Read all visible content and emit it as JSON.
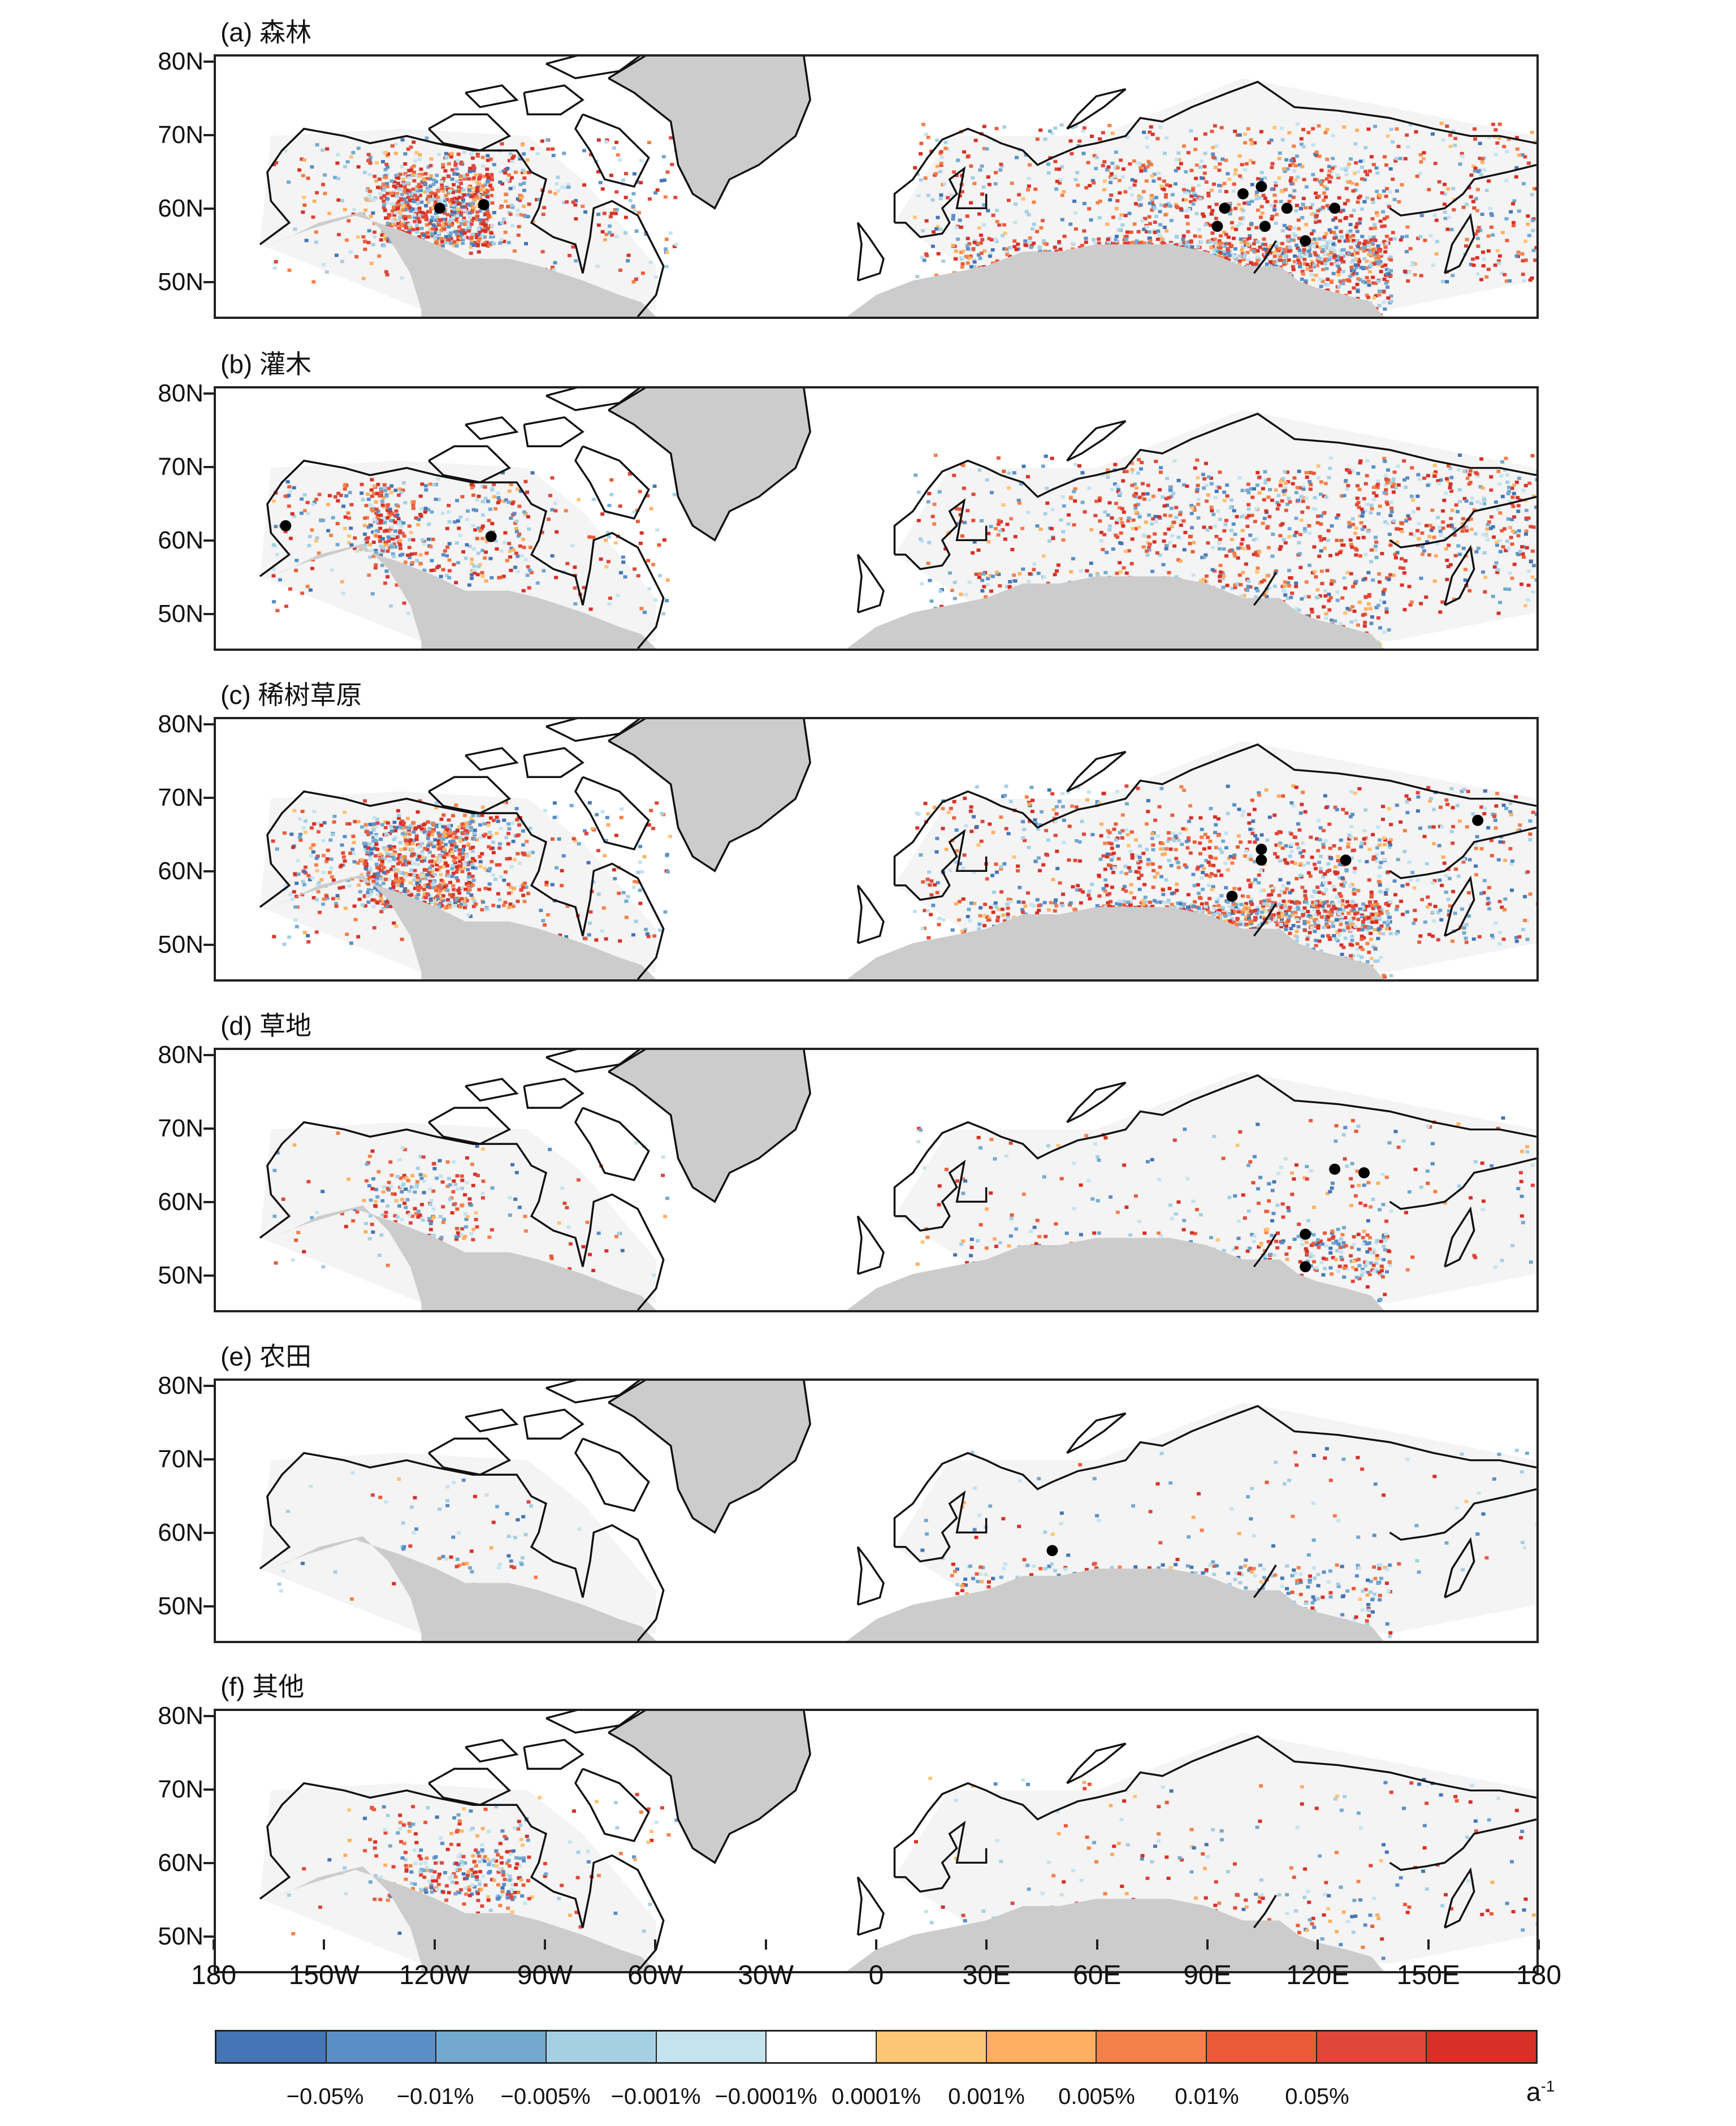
{
  "panels": [
    {
      "title": "(a) 森林",
      "dots_east": [
        [
          95,
          60
        ],
        [
          100,
          62
        ],
        [
          105,
          63
        ],
        [
          93,
          57.5
        ],
        [
          106,
          57.5
        ],
        [
          112,
          60
        ],
        [
          117,
          55.5
        ],
        [
          125,
          60
        ]
      ],
      "dots_west": [
        [
          -119,
          60
        ],
        [
          -107,
          60.5
        ]
      ]
    },
    {
      "title": "(b) 灌木",
      "dots_east": [],
      "dots_west": [
        [
          -161,
          62
        ],
        [
          -105,
          60.5
        ]
      ]
    },
    {
      "title": "(c) 稀树草原",
      "dots_east": [
        [
          105,
          63
        ],
        [
          105,
          61.5
        ],
        [
          97,
          56.5
        ],
        [
          128,
          61.5
        ],
        [
          164,
          67
        ]
      ],
      "dots_west": []
    },
    {
      "title": "(d) 草地",
      "dots_east": [
        [
          125,
          64.5
        ],
        [
          133,
          64
        ],
        [
          117,
          55.5
        ],
        [
          117,
          51
        ]
      ],
      "dots_west": []
    },
    {
      "title": "(e) 农田",
      "dots_east": [
        [
          48,
          57.5
        ]
      ],
      "dots_west": []
    },
    {
      "title": "(f) 其他",
      "dots_east": [],
      "dots_west": []
    }
  ],
  "lat_labels": [
    "80N",
    "70N",
    "60N",
    "50N"
  ],
  "lon_labels": [
    "180",
    "150W",
    "120W",
    "90W",
    "60W",
    "30W",
    "0",
    "30E",
    "60E",
    "90E",
    "120E",
    "150E",
    "180"
  ],
  "colorbar": {
    "colors": [
      "#4575b4",
      "#5a8ec6",
      "#74a9cf",
      "#a6cfe3",
      "#c5e3ee",
      "#ffffff",
      "#fdc576",
      "#fdb062",
      "#f4804a",
      "#e95a3a",
      "#e0463a",
      "#d73027"
    ],
    "labels": [
      "−0.05%",
      "−0.01%",
      "−0.005%",
      "−0.001%",
      "−0.0001%",
      "0.0001%",
      "0.001%",
      "0.005%",
      "0.01%",
      "0.05%"
    ],
    "unit": "a",
    "unit_exp": "-1"
  },
  "colors": {
    "land_mask": "#cccccc",
    "coast": "#111111",
    "positive": "#e0463a",
    "negative": "#5b8ac4"
  }
}
